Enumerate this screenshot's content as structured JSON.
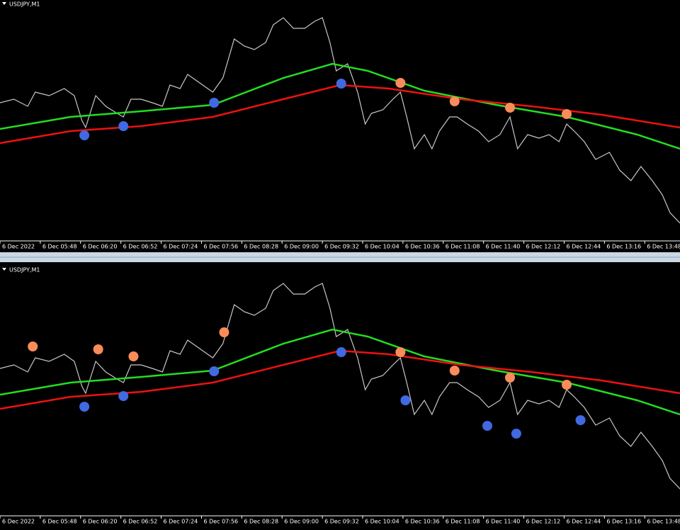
{
  "chart_data": [
    {
      "type": "line",
      "title": "USDJPY,M1",
      "xlim": [
        0,
        540
      ],
      "ylim": [
        0,
        340
      ],
      "xticks": [
        {
          "value": 0,
          "label": "6 Dec 2022"
        },
        {
          "value": 32,
          "label": "6 Dec 05:48"
        },
        {
          "value": 64,
          "label": "6 Dec 06:20"
        },
        {
          "value": 96,
          "label": "6 Dec 06:52"
        },
        {
          "value": 128,
          "label": "6 Dec 07:24"
        },
        {
          "value": 160,
          "label": "6 Dec 07:56"
        },
        {
          "value": 192,
          "label": "6 Dec 08:28"
        },
        {
          "value": 224,
          "label": "6 Dec 09:00"
        },
        {
          "value": 256,
          "label": "6 Dec 09:32"
        },
        {
          "value": 288,
          "label": "6 Dec 10:04"
        },
        {
          "value": 320,
          "label": "6 Dec 10:36"
        },
        {
          "value": 352,
          "label": "6 Dec 11:08"
        },
        {
          "value": 384,
          "label": "6 Dec 11:40"
        },
        {
          "value": 416,
          "label": "6 Dec 12:12"
        },
        {
          "value": 448,
          "label": "6 Dec 12:44"
        },
        {
          "value": 480,
          "label": "6 Dec 13:16"
        },
        {
          "value": 512,
          "label": "6 Dec 13:48"
        }
      ],
      "series": [
        {
          "color": "#c8c8c8",
          "x": [
            0,
            11,
            22,
            28,
            39,
            51,
            59,
            65,
            68,
            76,
            84,
            93,
            98,
            104,
            112,
            121,
            129,
            135,
            143,
            149,
            157,
            169,
            177,
            186,
            194,
            202,
            211,
            217,
            225,
            233,
            242,
            250,
            256,
            262,
            267,
            276,
            284,
            290,
            295,
            304,
            312,
            318,
            323,
            329,
            337,
            343,
            349,
            357,
            363,
            371,
            380,
            388,
            397,
            405,
            411,
            419,
            428,
            436,
            444,
            450,
            456,
            464,
            473,
            484,
            492,
            501,
            509,
            518,
            526,
            532,
            540
          ],
          "values": [
            195,
            200,
            190,
            210,
            205,
            215,
            205,
            170,
            160,
            205,
            190,
            180,
            175,
            200,
            200,
            195,
            190,
            220,
            215,
            235,
            225,
            210,
            230,
            285,
            275,
            270,
            280,
            305,
            315,
            300,
            300,
            310,
            315,
            280,
            240,
            250,
            210,
            165,
            180,
            185,
            200,
            210,
            175,
            130,
            150,
            130,
            155,
            175,
            175,
            165,
            155,
            140,
            150,
            175,
            130,
            150,
            145,
            150,
            140,
            165,
            155,
            140,
            115,
            125,
            100,
            85,
            105,
            85,
            65,
            40,
            25
          ]
        },
        {
          "color": "#22dd22",
          "x": [
            0,
            56,
            112,
            169,
            225,
            264,
            292,
            337,
            394,
            450,
            506,
            540
          ],
          "values": [
            158,
            175,
            183,
            192,
            230,
            250,
            240,
            212,
            192,
            175,
            150,
            130
          ]
        },
        {
          "color": "#ee1111",
          "x": [
            0,
            56,
            112,
            169,
            225,
            270,
            309,
            366,
            422,
            478,
            540
          ],
          "values": [
            138,
            155,
            162,
            175,
            200,
            220,
            215,
            200,
            190,
            178,
            160
          ]
        }
      ],
      "signals": [
        {
          "color": "#4169e1",
          "x": [
            67,
            98,
            170,
            271
          ],
          "values": [
            149,
            162,
            195,
            222
          ]
        },
        {
          "color": "#fa8c5a",
          "x": [
            318,
            361,
            405,
            450
          ],
          "values": [
            223,
            197,
            188,
            179
          ]
        }
      ]
    },
    {
      "type": "line",
      "title": "USDJPY,M1",
      "xlim": [
        0,
        540
      ],
      "ylim": [
        0,
        340
      ],
      "xticks": [
        {
          "value": 0,
          "label": "6 Dec 2022"
        },
        {
          "value": 32,
          "label": "6 Dec 05:48"
        },
        {
          "value": 64,
          "label": "6 Dec 06:20"
        },
        {
          "value": 96,
          "label": "6 Dec 06:52"
        },
        {
          "value": 128,
          "label": "6 Dec 07:24"
        },
        {
          "value": 160,
          "label": "6 Dec 07:56"
        },
        {
          "value": 192,
          "label": "6 Dec 08:28"
        },
        {
          "value": 224,
          "label": "6 Dec 09:00"
        },
        {
          "value": 256,
          "label": "6 Dec 09:32"
        },
        {
          "value": 288,
          "label": "6 Dec 10:04"
        },
        {
          "value": 320,
          "label": "6 Dec 10:36"
        },
        {
          "value": 352,
          "label": "6 Dec 11:08"
        },
        {
          "value": 384,
          "label": "6 Dec 11:40"
        },
        {
          "value": 416,
          "label": "6 Dec 12:12"
        },
        {
          "value": 448,
          "label": "6 Dec 12:44"
        },
        {
          "value": 480,
          "label": "6 Dec 13:16"
        },
        {
          "value": 512,
          "label": "6 Dec 13:48"
        }
      ],
      "series": [
        {
          "color": "#c8c8c8",
          "x": [
            0,
            11,
            22,
            28,
            39,
            51,
            59,
            65,
            68,
            76,
            84,
            93,
            98,
            104,
            112,
            121,
            129,
            135,
            143,
            149,
            157,
            169,
            177,
            186,
            194,
            202,
            211,
            217,
            225,
            233,
            242,
            250,
            256,
            262,
            267,
            276,
            284,
            290,
            295,
            304,
            312,
            318,
            323,
            329,
            337,
            343,
            349,
            357,
            363,
            371,
            380,
            388,
            397,
            405,
            411,
            419,
            428,
            436,
            444,
            450,
            456,
            464,
            473,
            484,
            492,
            501,
            509,
            518,
            526,
            532,
            540
          ],
          "values": [
            195,
            200,
            190,
            210,
            205,
            215,
            205,
            170,
            160,
            205,
            190,
            180,
            175,
            200,
            200,
            195,
            190,
            220,
            215,
            235,
            225,
            210,
            230,
            285,
            275,
            270,
            280,
            305,
            315,
            300,
            300,
            310,
            315,
            280,
            240,
            250,
            210,
            165,
            180,
            185,
            200,
            210,
            175,
            130,
            150,
            130,
            155,
            175,
            175,
            165,
            155,
            140,
            150,
            175,
            130,
            150,
            145,
            150,
            140,
            165,
            155,
            140,
            115,
            125,
            100,
            85,
            105,
            85,
            65,
            40,
            25
          ]
        },
        {
          "color": "#22dd22",
          "x": [
            0,
            56,
            112,
            169,
            225,
            264,
            292,
            337,
            394,
            450,
            506,
            540
          ],
          "values": [
            158,
            175,
            183,
            192,
            230,
            250,
            240,
            212,
            192,
            175,
            150,
            130
          ]
        },
        {
          "color": "#ee1111",
          "x": [
            0,
            56,
            112,
            169,
            225,
            270,
            309,
            366,
            422,
            478,
            540
          ],
          "values": [
            138,
            155,
            162,
            175,
            200,
            220,
            215,
            200,
            190,
            178,
            160
          ]
        }
      ],
      "signals": [
        {
          "color": "#4169e1",
          "x": [
            67,
            98,
            170,
            271,
            322,
            387,
            410,
            461
          ],
          "values": [
            141,
            156,
            191,
            218,
            150,
            114,
            103,
            122
          ]
        },
        {
          "color": "#fa8c5a",
          "x": [
            26,
            78,
            106,
            178,
            318,
            361,
            405,
            450
          ],
          "values": [
            226,
            222,
            212,
            246,
            218,
            192,
            182,
            172
          ]
        }
      ]
    }
  ]
}
